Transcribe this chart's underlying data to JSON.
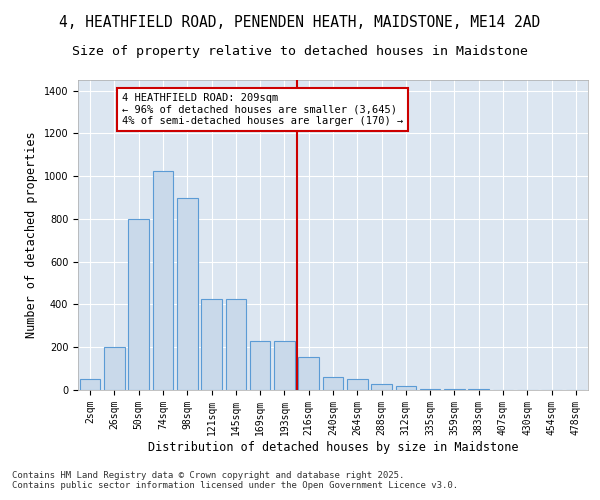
{
  "title_line1": "4, HEATHFIELD ROAD, PENENDEN HEATH, MAIDSTONE, ME14 2AD",
  "title_line2": "Size of property relative to detached houses in Maidstone",
  "xlabel": "Distribution of detached houses by size in Maidstone",
  "ylabel": "Number of detached properties",
  "bar_labels": [
    "2sqm",
    "26sqm",
    "50sqm",
    "74sqm",
    "98sqm",
    "121sqm",
    "145sqm",
    "169sqm",
    "193sqm",
    "216sqm",
    "240sqm",
    "264sqm",
    "288sqm",
    "312sqm",
    "335sqm",
    "359sqm",
    "383sqm",
    "407sqm",
    "430sqm",
    "454sqm",
    "478sqm"
  ],
  "bar_values": [
    50,
    200,
    800,
    1025,
    900,
    425,
    425,
    230,
    230,
    155,
    60,
    50,
    30,
    20,
    5,
    5,
    5,
    0,
    0,
    0,
    0
  ],
  "bar_color": "#c9d9ea",
  "bar_edge_color": "#5b9bd5",
  "marker_color": "#cc0000",
  "annotation_line1": "4 HEATHFIELD ROAD: 209sqm",
  "annotation_line2": "← 96% of detached houses are smaller (3,645)",
  "annotation_line3": "4% of semi-detached houses are larger (170) →",
  "annotation_box_color": "#cc0000",
  "ylim": [
    0,
    1450
  ],
  "yticks": [
    0,
    200,
    400,
    600,
    800,
    1000,
    1200,
    1400
  ],
  "background_color": "#dce6f1",
  "grid_color": "#ffffff",
  "footer_line1": "Contains HM Land Registry data © Crown copyright and database right 2025.",
  "footer_line2": "Contains public sector information licensed under the Open Government Licence v3.0.",
  "title_fontsize": 10.5,
  "subtitle_fontsize": 9.5,
  "axis_label_fontsize": 8.5,
  "tick_fontsize": 7,
  "annotation_fontsize": 7.5,
  "footer_fontsize": 6.5
}
